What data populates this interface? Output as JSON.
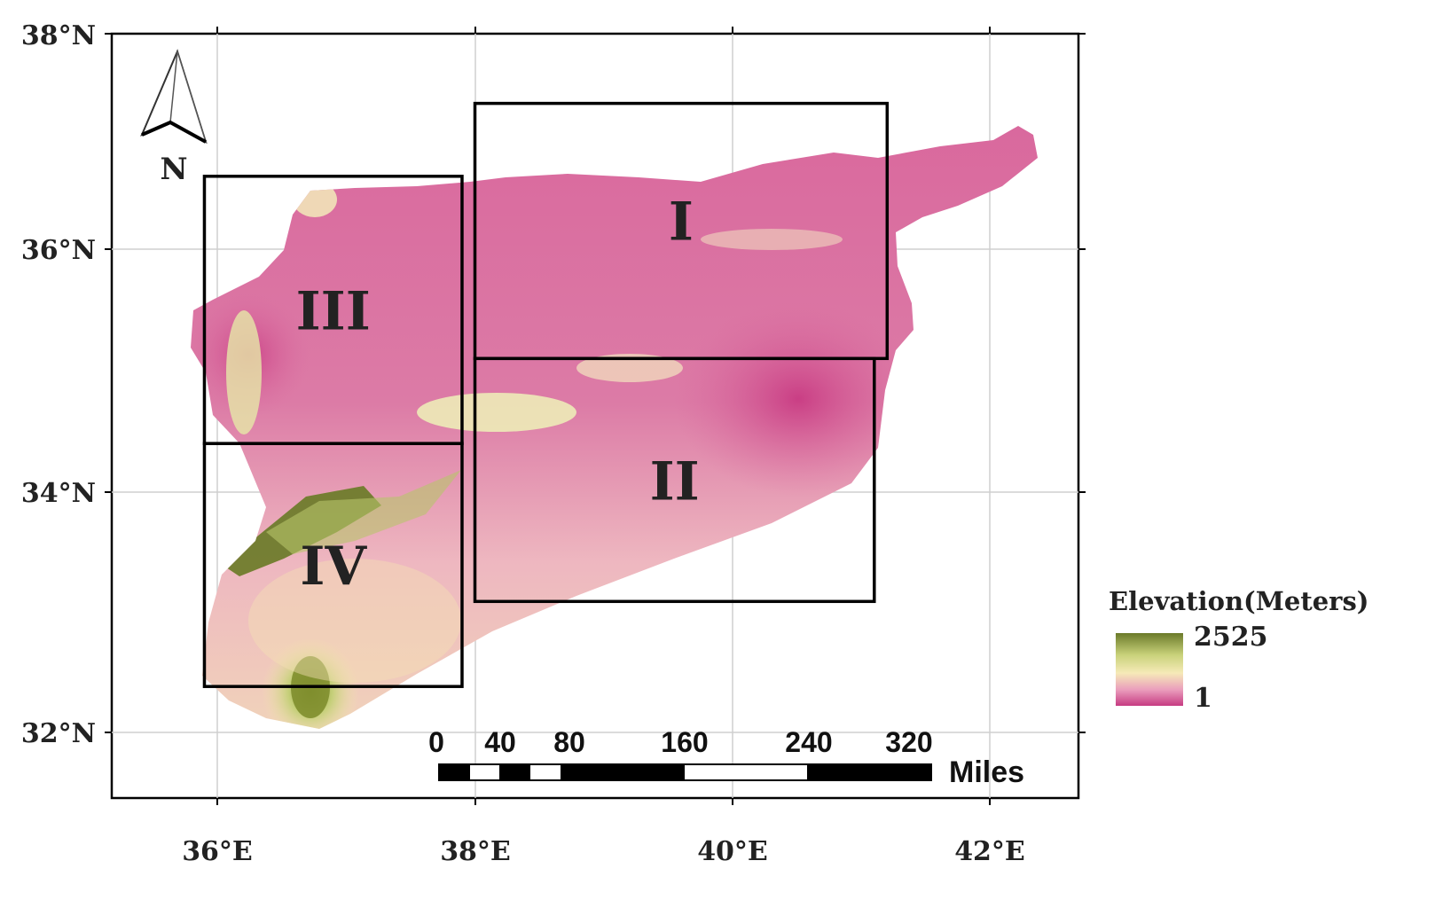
{
  "map": {
    "lat_ticks": [
      {
        "value": 38,
        "label": "38°N"
      },
      {
        "value": 36,
        "label": "36°N"
      },
      {
        "value": 34,
        "label": "34°N"
      },
      {
        "value": 32,
        "label": "32°N"
      }
    ],
    "lon_ticks": [
      {
        "value": 36,
        "label": "36°E"
      },
      {
        "value": 38,
        "label": "38°E"
      },
      {
        "value": 40,
        "label": "40°E"
      },
      {
        "value": 42,
        "label": "42°E"
      }
    ],
    "regions": [
      {
        "id": "I",
        "label": "I",
        "lon_min": 38.0,
        "lon_max": 41.2,
        "lat_min": 35.1,
        "lat_max": 37.2
      },
      {
        "id": "II",
        "label": "II",
        "lon_min": 38.0,
        "lon_max": 41.1,
        "lat_min": 33.1,
        "lat_max": 35.1
      },
      {
        "id": "III",
        "label": "III",
        "lon_min": 35.9,
        "lon_max": 37.9,
        "lat_min": 34.4,
        "lat_max": 36.6
      },
      {
        "id": "IV",
        "label": "IV",
        "lon_min": 35.9,
        "lon_max": 37.9,
        "lat_min": 32.4,
        "lat_max": 34.4
      }
    ],
    "north_arrow": {
      "label": "N",
      "icon": "north-arrow-icon"
    },
    "legend": {
      "title": "Elevation(Meters)",
      "max_label": "2525",
      "min_label": "1",
      "colors": {
        "high": "#6b7a2a",
        "mid": "#f3e7b0",
        "low": "#c63b82"
      }
    },
    "scale_bar": {
      "ticks": [
        "0",
        "40",
        "80",
        "160",
        "240",
        "320"
      ],
      "unit": "Miles"
    },
    "colors": {
      "frame": "#000000",
      "grid": "#cfcfcf",
      "territory": "#d9689d"
    }
  }
}
